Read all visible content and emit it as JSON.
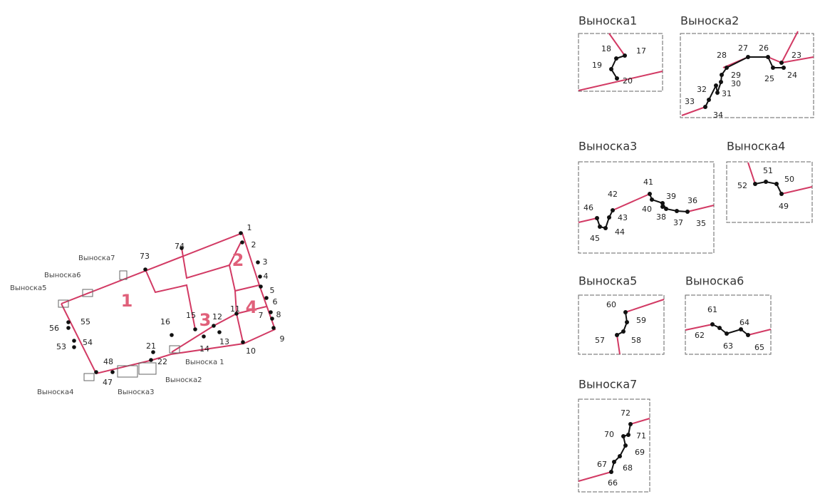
{
  "plan": {
    "points": [
      "1",
      "2",
      "3",
      "4",
      "5",
      "6",
      "7",
      "8",
      "9",
      "10",
      "11",
      "12",
      "13",
      "14",
      "15",
      "16",
      "21",
      "22",
      "47",
      "48",
      "53",
      "54",
      "55",
      "56",
      "73",
      "74"
    ],
    "parcels": [
      "1",
      "2",
      "3",
      "4"
    ],
    "callouts": [
      "Выноска7",
      "Выноска6",
      "Выноска5",
      "Выноска4",
      "Выноска3",
      "Выноска2",
      "Выноска 1"
    ]
  },
  "callouts": [
    {
      "title": "Выноска1",
      "points": [
        "17",
        "18",
        "19",
        "20"
      ]
    },
    {
      "title": "Выноска2",
      "points": [
        "23",
        "24",
        "25",
        "26",
        "27",
        "28",
        "29",
        "30",
        "31",
        "32",
        "33",
        "34"
      ]
    },
    {
      "title": "Выноска3",
      "points": [
        "35",
        "36",
        "37",
        "38",
        "39",
        "40",
        "41",
        "42",
        "43",
        "44",
        "45",
        "46"
      ]
    },
    {
      "title": "Выноска4",
      "points": [
        "49",
        "50",
        "51",
        "52"
      ]
    },
    {
      "title": "Выноска5",
      "points": [
        "57",
        "58",
        "59",
        "60"
      ]
    },
    {
      "title": "Выноска6",
      "points": [
        "61",
        "62",
        "63",
        "64",
        "65"
      ]
    },
    {
      "title": "Выноска7",
      "points": [
        "66",
        "67",
        "68",
        "69",
        "70",
        "71",
        "72"
      ]
    }
  ]
}
